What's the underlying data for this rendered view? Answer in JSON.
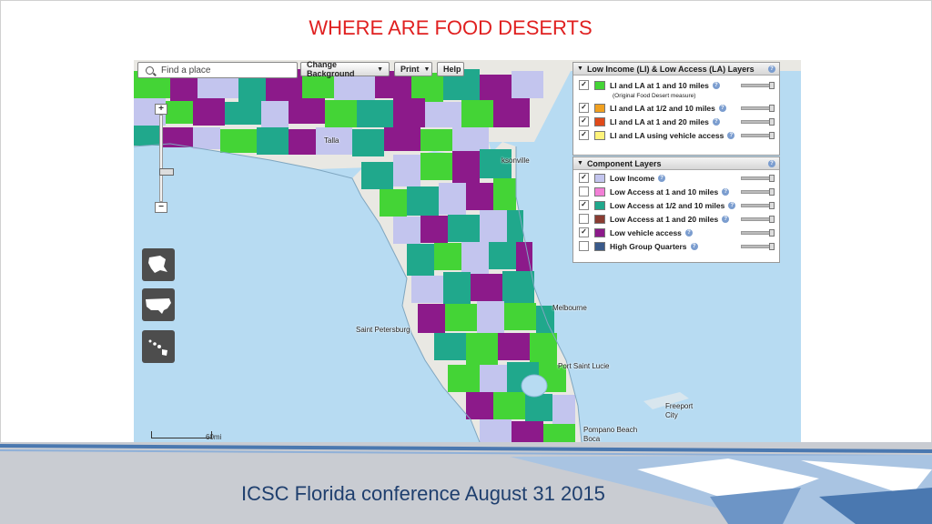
{
  "slide": {
    "title": "WHERE ARE FOOD DESERTS",
    "footer": "ICSC Florida conference August 31 2015"
  },
  "toolbar": {
    "search_placeholder": "Find a place",
    "change_background": "Change Background",
    "print": "Print",
    "help": "Help"
  },
  "map": {
    "labels": {
      "jacksonville": "ksonville",
      "tallahassee": "Talla",
      "melbourne": "Melbourne",
      "st_petersburg": "Saint Petersburg",
      "port_st_lucie": "Port Saint Lucie",
      "freeport": "Freeport",
      "freeport_city": "City",
      "pompano": "Pompano Beach",
      "boca": "Boca"
    },
    "scale_label": "60mi",
    "zoom_plus": "+",
    "zoom_minus": "−"
  },
  "panels": {
    "li_la": {
      "header": "Low Income (LI) & Low Access (LA) Layers",
      "note": "(Original Food Desert measure)",
      "items": [
        {
          "label": "LI and LA at 1 and 10 miles",
          "color": "#44d436",
          "checked": "✓"
        },
        {
          "label": "LI and LA at 1/2 and 10 miles",
          "color": "#f0a020",
          "checked": "✓"
        },
        {
          "label": "LI and LA at 1 and 20 miles",
          "color": "#e04a1a",
          "checked": "✓"
        },
        {
          "label": "LI and LA using vehicle access",
          "color": "#fff37a",
          "checked": "✓"
        }
      ]
    },
    "component": {
      "header": "Component Layers",
      "items": [
        {
          "label": "Low Income",
          "color": "#c3c5ee",
          "checked": "✓"
        },
        {
          "label": "Low Access at 1 and 10 miles",
          "color": "#f27fd6",
          "checked": ""
        },
        {
          "label": "Low Access at 1/2 and 10 miles",
          "color": "#20a88c",
          "checked": "✓"
        },
        {
          "label": "Low Access at 1 and 20 miles",
          "color": "#8a3c32",
          "checked": ""
        },
        {
          "label": "Low vehicle access",
          "color": "#8c1a8a",
          "checked": "✓"
        },
        {
          "label": "High Group Quarters",
          "color": "#3a5a8a",
          "checked": ""
        }
      ]
    }
  },
  "colors": {
    "title_red": "#e02020",
    "water": "#b7dbf2",
    "land": "#e9e8e3",
    "li_la_green": "#44d436",
    "low_income": "#c3c5ee",
    "low_access_teal": "#20a88c",
    "low_vehicle_purple": "#8c1a8a",
    "footer_text": "#1f3f6e"
  },
  "icons": [
    "search-icon",
    "alaska-map-icon",
    "usa-map-icon",
    "hawaii-map-icon",
    "help-icon"
  ]
}
